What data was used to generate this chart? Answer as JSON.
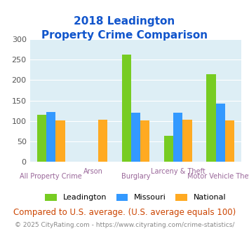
{
  "title_line1": "2018 Leadington",
  "title_line2": "Property Crime Comparison",
  "categories": [
    "All Property Crime",
    "Arson",
    "Burglary",
    "Larceny & Theft",
    "Motor Vehicle Theft"
  ],
  "series": {
    "Leadington": [
      115,
      0,
      263,
      63,
      215
    ],
    "Missouri": [
      122,
      0,
      120,
      120,
      142
    ],
    "National": [
      102,
      103,
      102,
      103,
      102
    ]
  },
  "colors": {
    "Leadington": "#77cc22",
    "Missouri": "#3399ff",
    "National": "#ffaa22"
  },
  "ylim": [
    0,
    300
  ],
  "yticks": [
    0,
    50,
    100,
    150,
    200,
    250,
    300
  ],
  "bg_color": "#ddeef5",
  "title_color": "#1155cc",
  "xlabel_color": "#996699",
  "footer_text": "Compared to U.S. average. (U.S. average equals 100)",
  "footer_color": "#cc4400",
  "copyright_text": "© 2025 CityRating.com - https://www.cityrating.com/crime-statistics/",
  "copyright_color": "#888888"
}
